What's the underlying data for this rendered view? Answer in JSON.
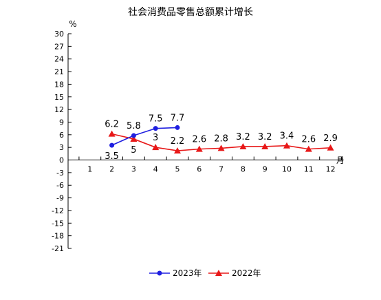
{
  "chart_data": {
    "type": "line",
    "title": "社会消费品零售总额累计增长",
    "ylabel": "%",
    "xlabel": "月",
    "ylim": [
      -21,
      30
    ],
    "xlim": [
      0,
      12
    ],
    "y_ticks": [
      30,
      27,
      24,
      21,
      18,
      15,
      12,
      9,
      6,
      3,
      0,
      -3,
      -6,
      -9,
      -12,
      -15,
      -18,
      -21
    ],
    "x_ticks": [
      1,
      2,
      3,
      4,
      5,
      6,
      7,
      8,
      9,
      10,
      11,
      12
    ],
    "grid": false,
    "legend_position": "bottom",
    "series": [
      {
        "name": "2023年",
        "color": "#1f1fe0",
        "marker": "circle",
        "x": [
          2,
          3,
          4,
          5
        ],
        "values": [
          3.5,
          5.8,
          7.5,
          7.7
        ],
        "labels": [
          "3.5",
          "5.8",
          "7.5",
          "7.7"
        ],
        "label_positions": [
          "below",
          "above",
          "above",
          "above"
        ]
      },
      {
        "name": "2022年",
        "color": "#e81818",
        "marker": "triangle",
        "x": [
          2,
          3,
          4,
          5,
          6,
          7,
          8,
          9,
          10,
          11,
          12
        ],
        "values": [
          6.2,
          5,
          3,
          2.2,
          2.6,
          2.8,
          3.2,
          3.2,
          3.4,
          2.6,
          2.9
        ],
        "labels": [
          "6.2",
          "5",
          "3",
          "2.2",
          "2.6",
          "2.8",
          "3.2",
          "3.2",
          "3.4",
          "2.6",
          "2.9"
        ],
        "label_positions": [
          "above",
          "below",
          "above",
          "above",
          "above",
          "above",
          "above",
          "above",
          "above",
          "above",
          "above"
        ]
      }
    ]
  }
}
